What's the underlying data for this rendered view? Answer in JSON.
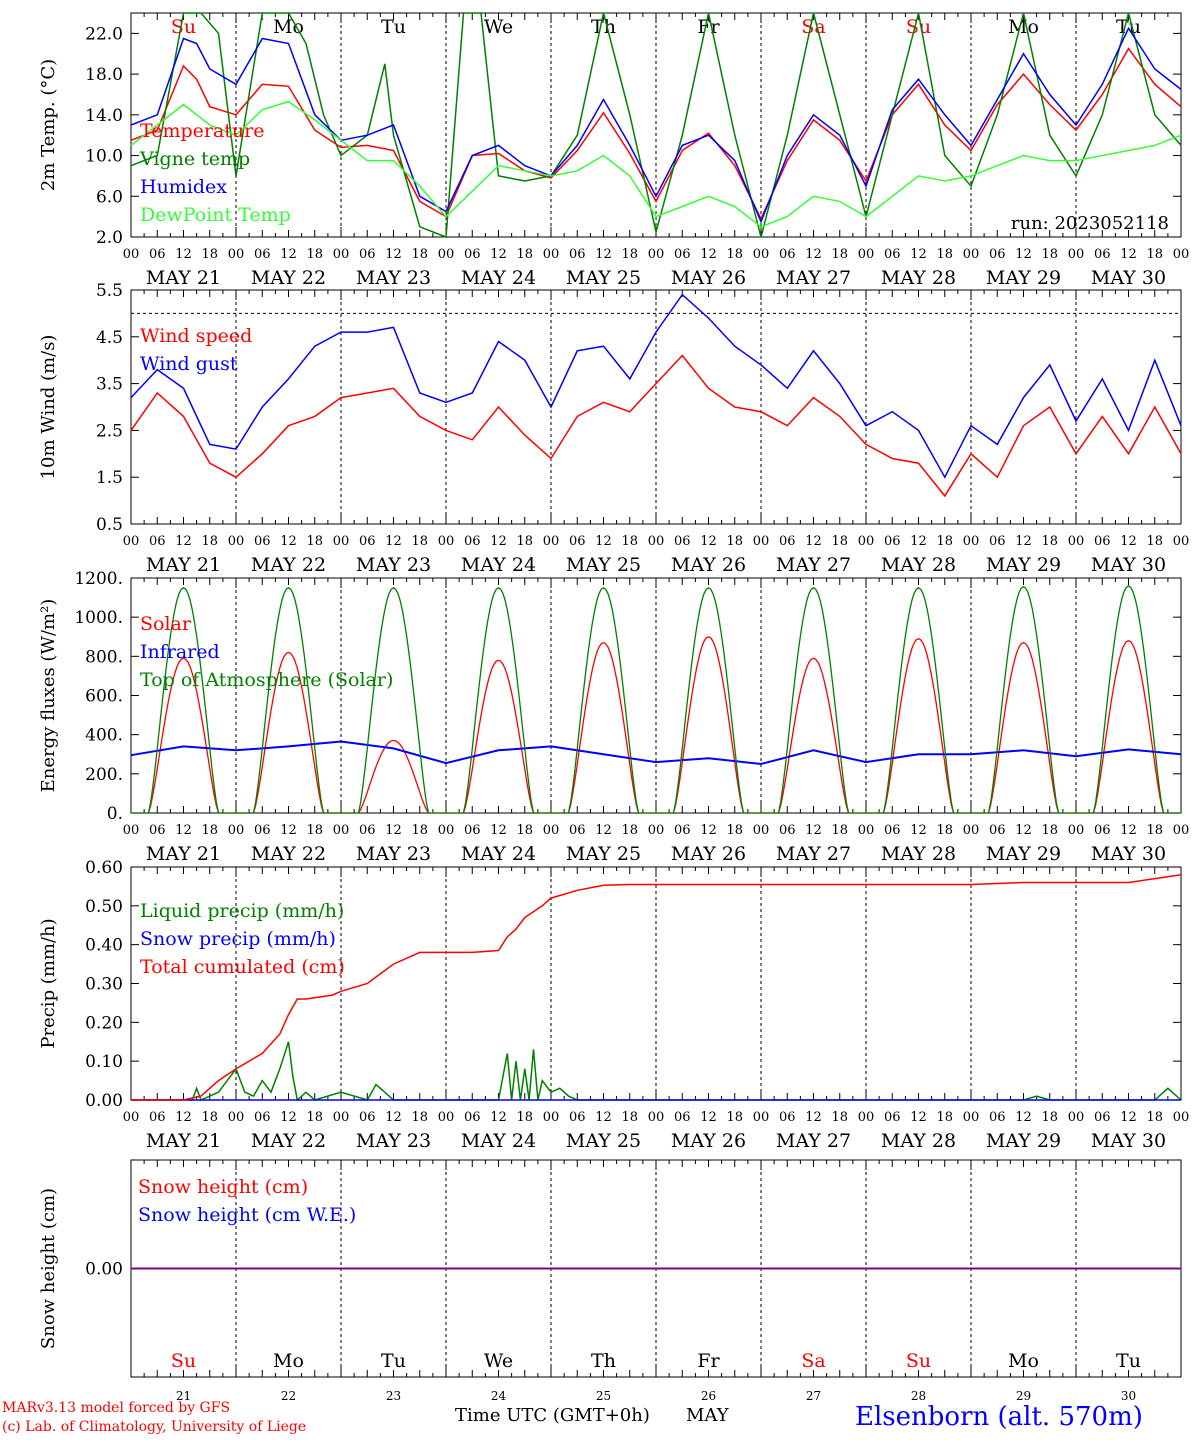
{
  "colors": {
    "red": "#ff0000",
    "green": "#008000",
    "blue": "#0000ff",
    "lightgreen": "#33ff33",
    "purple": "#800080",
    "black": "#000000"
  },
  "time_axis": {
    "hour_labels": [
      "00",
      "06",
      "12",
      "18"
    ],
    "end_label": "00",
    "dates": [
      "MAY 21",
      "MAY 22",
      "MAY 23",
      "MAY 24",
      "MAY 25",
      "MAY 26",
      "MAY 27",
      "MAY 28",
      "MAY 29",
      "MAY 30"
    ],
    "weekdays": [
      "Su",
      "Mo",
      "Tu",
      "We",
      "Th",
      "Fr",
      "Sa",
      "Su",
      "Mo",
      "Tu"
    ],
    "weekday_colors": [
      "#ff0000",
      "#000000",
      "#000000",
      "#000000",
      "#000000",
      "#000000",
      "#ff0000",
      "#ff0000",
      "#000000",
      "#000000"
    ],
    "day_numbers": [
      "21",
      "22",
      "23",
      "24",
      "25",
      "26",
      "27",
      "28",
      "29",
      "30"
    ]
  },
  "footer": {
    "model_line": "MARv3.13 model forced by GFS",
    "credit_line": "(c) Lab. of Climatology, University of Liege",
    "axis_title": "Time UTC (GMT+0h)",
    "month": "MAY",
    "station": "Elsenborn (alt. 570m)"
  },
  "chart_data": [
    {
      "type": "line",
      "ylabel": "2m Temp. (°C)",
      "ylim": [
        2.0,
        24.0
      ],
      "yticks": [
        "2.0",
        "6.0",
        "10.0",
        "14.0",
        "18.0",
        "22.0"
      ],
      "ytick_values": [
        2,
        6,
        10,
        14,
        18,
        22
      ],
      "annotation": "run: 2023052118",
      "x_unit": "hours since May 21 00 UTC",
      "series": [
        {
          "name": "Temperature",
          "color": "#ff0000",
          "x": [
            0,
            6,
            12,
            15,
            18,
            24,
            30,
            36,
            42,
            48,
            54,
            60,
            66,
            72,
            78,
            84,
            90,
            96,
            102,
            108,
            114,
            120,
            126,
            132,
            138,
            144,
            150,
            156,
            162,
            168,
            174,
            180,
            186,
            192,
            198,
            204,
            210,
            216,
            222,
            228,
            234,
            240
          ],
          "y": [
            11.5,
            12.5,
            18.8,
            17.5,
            14.8,
            14,
            17,
            16.8,
            12.5,
            10.8,
            11,
            10.5,
            5.5,
            4,
            10,
            10.2,
            8.5,
            7.8,
            10.5,
            14.2,
            10.2,
            5.5,
            10.5,
            12.2,
            9,
            3.8,
            9.5,
            13.5,
            11.5,
            7.5,
            14,
            17,
            13,
            10.5,
            15,
            18,
            15,
            12.5,
            16,
            20.5,
            17,
            14.8
          ]
        },
        {
          "name": "Vigne temp",
          "color": "#008000",
          "x": [
            0,
            6,
            12,
            16,
            20,
            24,
            30,
            36,
            40,
            44,
            48,
            54,
            58,
            60,
            66,
            72,
            76,
            80,
            84,
            90,
            96,
            102,
            108,
            114,
            120,
            126,
            132,
            138,
            144,
            150,
            156,
            162,
            168,
            174,
            180,
            186,
            192,
            198,
            204,
            210,
            216,
            222,
            228,
            234,
            240
          ],
          "y": [
            9,
            10,
            24,
            24,
            22,
            8,
            24,
            24,
            21,
            14,
            10,
            12,
            19,
            12,
            3,
            2,
            24,
            24,
            8,
            7.5,
            8,
            12,
            24,
            14,
            2.5,
            12,
            24,
            12,
            2,
            12,
            24,
            14,
            4,
            14,
            24,
            10,
            7,
            14,
            24,
            12,
            8,
            14,
            24,
            14,
            11
          ]
        },
        {
          "name": "Humidex",
          "color": "#0000ff",
          "x": [
            0,
            6,
            12,
            15,
            18,
            24,
            30,
            36,
            42,
            48,
            54,
            60,
            66,
            72,
            78,
            84,
            90,
            96,
            102,
            108,
            114,
            120,
            126,
            132,
            138,
            144,
            150,
            156,
            162,
            168,
            174,
            180,
            186,
            192,
            198,
            204,
            210,
            216,
            222,
            228,
            234,
            240
          ],
          "y": [
            13,
            14,
            21.5,
            21,
            18.5,
            17,
            21.5,
            21,
            14,
            11.5,
            12,
            13,
            6,
            4.5,
            10,
            11,
            9,
            8,
            11,
            15.5,
            11,
            6,
            11,
            12,
            9.5,
            3.5,
            10,
            14,
            12,
            7,
            14.5,
            17.5,
            14,
            11,
            15.5,
            20,
            16,
            13,
            17,
            22.5,
            18.5,
            16.5
          ]
        },
        {
          "name": "DewPoint Temp",
          "color": "#33ff33",
          "x": [
            0,
            6,
            12,
            18,
            24,
            30,
            36,
            42,
            48,
            54,
            60,
            66,
            72,
            78,
            84,
            90,
            96,
            102,
            108,
            114,
            120,
            126,
            132,
            138,
            144,
            150,
            156,
            162,
            168,
            174,
            180,
            186,
            192,
            198,
            204,
            210,
            216,
            222,
            228,
            234,
            240
          ],
          "y": [
            11,
            13,
            15,
            13,
            12,
            14.5,
            15.3,
            13.5,
            11.5,
            9.5,
            9.5,
            7,
            4,
            6.5,
            9,
            8.5,
            8,
            8.5,
            10,
            8,
            4,
            5,
            6,
            5,
            3,
            4,
            6,
            5.5,
            4,
            6,
            8,
            7.5,
            8,
            9,
            10,
            9.5,
            9.5,
            10,
            10.5,
            11,
            12
          ]
        }
      ]
    },
    {
      "type": "line",
      "ylabel": "10m Wind (m/s)",
      "ylim": [
        0.5,
        5.5
      ],
      "yticks": [
        "0.5",
        "1.5",
        "2.5",
        "3.5",
        "4.5",
        "5.5"
      ],
      "ytick_values": [
        0.5,
        1.5,
        2.5,
        3.5,
        4.5,
        5.5
      ],
      "reference_line": 5.0,
      "x_unit": "hours since May 21 00 UTC",
      "series": [
        {
          "name": "Wind speed",
          "color": "#ff0000",
          "x": [
            0,
            6,
            12,
            18,
            24,
            30,
            36,
            42,
            48,
            54,
            60,
            66,
            72,
            78,
            84,
            90,
            96,
            102,
            108,
            114,
            120,
            126,
            132,
            138,
            144,
            150,
            156,
            162,
            168,
            174,
            180,
            186,
            192,
            198,
            204,
            210,
            216,
            222,
            228,
            234,
            240
          ],
          "y": [
            2.5,
            3.3,
            2.8,
            1.8,
            1.5,
            2.0,
            2.6,
            2.8,
            3.2,
            3.3,
            3.4,
            2.8,
            2.5,
            2.3,
            3.0,
            2.4,
            1.9,
            2.8,
            3.1,
            2.9,
            3.5,
            4.1,
            3.4,
            3.0,
            2.9,
            2.6,
            3.2,
            2.8,
            2.2,
            1.9,
            1.8,
            1.1,
            2.0,
            1.5,
            2.6,
            3.0,
            2.0,
            2.8,
            2.0,
            3.0,
            2.0
          ]
        },
        {
          "name": "Wind gust",
          "color": "#0000ff",
          "x": [
            0,
            6,
            12,
            18,
            24,
            30,
            36,
            42,
            48,
            54,
            60,
            66,
            72,
            78,
            84,
            90,
            96,
            102,
            108,
            114,
            120,
            126,
            132,
            138,
            144,
            150,
            156,
            162,
            168,
            174,
            180,
            186,
            192,
            198,
            204,
            210,
            216,
            222,
            228,
            234,
            240
          ],
          "y": [
            3.2,
            3.8,
            3.4,
            2.2,
            2.1,
            3.0,
            3.6,
            4.3,
            4.6,
            4.6,
            4.7,
            3.3,
            3.1,
            3.3,
            4.4,
            4.0,
            3.0,
            4.2,
            4.3,
            3.6,
            4.6,
            5.4,
            4.9,
            4.3,
            3.9,
            3.4,
            4.2,
            3.5,
            2.6,
            2.9,
            2.5,
            1.5,
            2.6,
            2.2,
            3.2,
            3.9,
            2.7,
            3.6,
            2.5,
            4.0,
            2.6
          ]
        }
      ]
    },
    {
      "type": "line",
      "ylabel": "Energy fluxes (W/m²)",
      "ylim": [
        0,
        1200
      ],
      "yticks": [
        "0.",
        "200.",
        "400.",
        "600.",
        "800.",
        "1000.",
        "1200."
      ],
      "ytick_values": [
        0,
        200,
        400,
        600,
        800,
        1000,
        1200
      ],
      "x_unit": "hours since May 21 00 UTC",
      "daylight_hours": {
        "sunrise": 4,
        "sunset": 20
      },
      "series": [
        {
          "name": "Solar",
          "color": "#ff0000",
          "daily_peak": [
            790,
            820,
            370,
            780,
            870,
            900,
            790,
            890,
            870,
            880
          ]
        },
        {
          "name": "Infrared",
          "color": "#0000ff",
          "x": [
            0,
            12,
            24,
            36,
            48,
            60,
            72,
            84,
            96,
            108,
            120,
            132,
            144,
            156,
            168,
            180,
            192,
            204,
            216,
            228,
            240
          ],
          "y": [
            295,
            340,
            320,
            340,
            365,
            330,
            255,
            320,
            340,
            300,
            260,
            280,
            250,
            320,
            260,
            300,
            300,
            320,
            290,
            325,
            300
          ]
        },
        {
          "name": "Top of Atmosphere (Solar)",
          "color": "#008000",
          "daily_peak": [
            1150,
            1150,
            1150,
            1150,
            1150,
            1150,
            1150,
            1150,
            1155,
            1160
          ]
        }
      ]
    },
    {
      "type": "line",
      "ylabel": "Precip (mm/h)",
      "ylim": [
        0,
        0.6
      ],
      "yticks": [
        "0.00",
        "0.10",
        "0.20",
        "0.30",
        "0.40",
        "0.50",
        "0.60"
      ],
      "ytick_values": [
        0,
        0.1,
        0.2,
        0.3,
        0.4,
        0.5,
        0.6
      ],
      "x_unit": "hours since May 21 00 UTC",
      "series": [
        {
          "name": "Liquid precip (mm/h)",
          "color": "#008000",
          "x": [
            0,
            14,
            15,
            16,
            18,
            20,
            22,
            24,
            26,
            28,
            30,
            32,
            34,
            36,
            37,
            38,
            40,
            42,
            48,
            54,
            56,
            60,
            66,
            84,
            86,
            87,
            88,
            89,
            90,
            91,
            92,
            93,
            94,
            96,
            98,
            100,
            102,
            204,
            207,
            210,
            234,
            237,
            240
          ],
          "y": [
            0,
            0,
            0.03,
            0,
            0.01,
            0.02,
            0.05,
            0.08,
            0.02,
            0.01,
            0.05,
            0.02,
            0.08,
            0.15,
            0.06,
            0,
            0.02,
            0,
            0.02,
            0,
            0.04,
            0,
            0,
            0,
            0.12,
            0,
            0.1,
            0,
            0.08,
            0,
            0.13,
            0,
            0.05,
            0.02,
            0.03,
            0.01,
            0,
            0,
            0.01,
            0,
            0,
            0.03,
            0
          ]
        },
        {
          "name": "Snow precip (mm/h)",
          "color": "#0000ff",
          "x": [
            0,
            240
          ],
          "y": [
            0,
            0
          ]
        },
        {
          "name": "Total cumulated (cm)",
          "color": "#ff0000",
          "x": [
            0,
            12,
            16,
            20,
            24,
            30,
            34,
            36,
            38,
            40,
            46,
            48,
            54,
            60,
            66,
            72,
            78,
            84,
            86,
            88,
            90,
            94,
            96,
            102,
            108,
            114,
            120,
            144,
            168,
            192,
            204,
            216,
            228,
            234,
            240
          ],
          "y": [
            0,
            0,
            0.01,
            0.05,
            0.08,
            0.12,
            0.17,
            0.22,
            0.26,
            0.26,
            0.27,
            0.28,
            0.3,
            0.35,
            0.38,
            0.38,
            0.38,
            0.385,
            0.42,
            0.44,
            0.47,
            0.5,
            0.52,
            0.54,
            0.553,
            0.555,
            0.555,
            0.555,
            0.555,
            0.555,
            0.56,
            0.56,
            0.56,
            0.57,
            0.58
          ]
        }
      ]
    },
    {
      "type": "line",
      "ylabel": "Snow height (cm)",
      "ylim": [
        -1,
        1
      ],
      "yticks": [
        "0.00"
      ],
      "ytick_values": [
        0
      ],
      "x_unit": "hours since May 21 00 UTC",
      "series": [
        {
          "name": "Snow height (cm)",
          "color": "#ff0000",
          "x": [
            0,
            240
          ],
          "y": [
            0,
            0
          ]
        },
        {
          "name": "Snow height (cm W.E.)",
          "color": "#0000ff",
          "x": [
            0,
            240
          ],
          "y": [
            0,
            0
          ]
        }
      ]
    }
  ]
}
